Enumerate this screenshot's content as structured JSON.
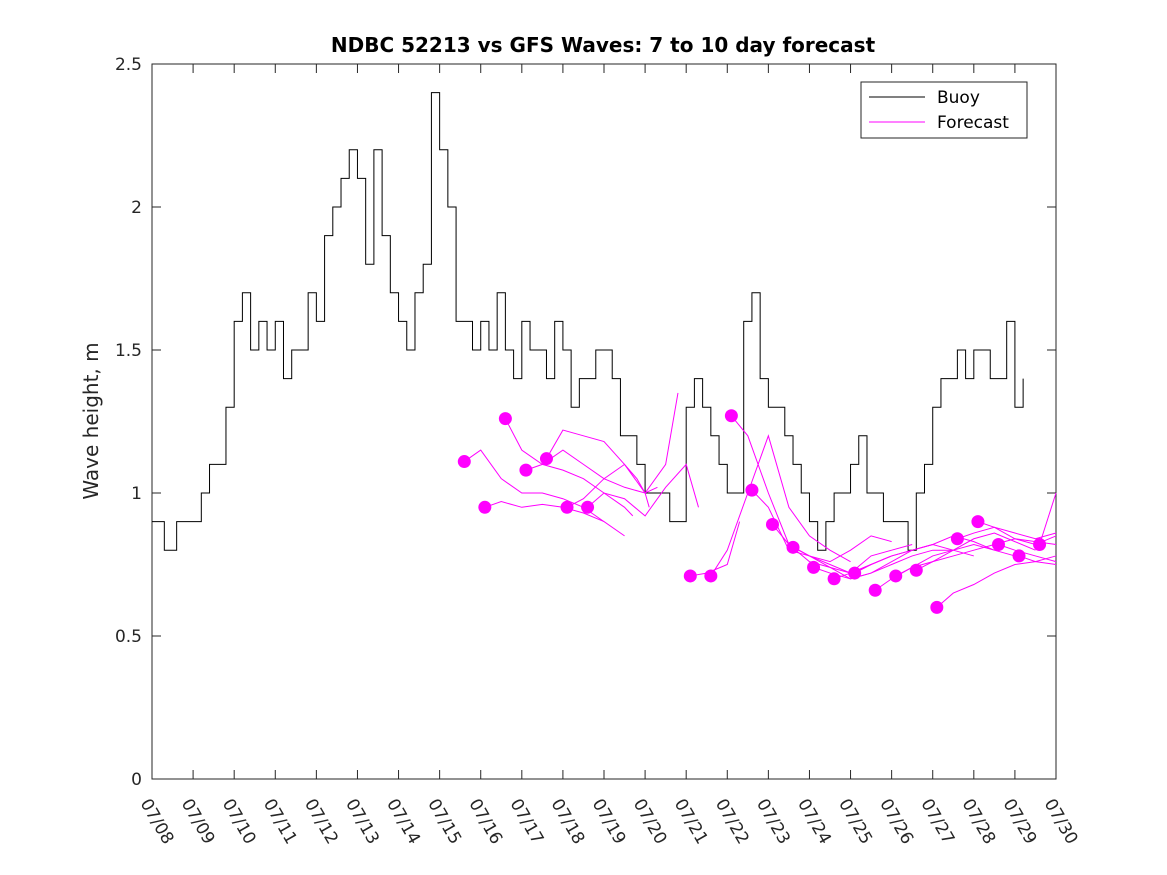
{
  "chart_data": {
    "type": "line",
    "title": "NDBC 52213 vs GFS Waves: 7 to 10 day forecast",
    "xlabel": "",
    "ylabel": "Wave height, m",
    "xlim": [
      0,
      22
    ],
    "ylim": [
      0,
      2.5
    ],
    "x_ticks": [
      "07/08",
      "07/09",
      "07/10",
      "07/11",
      "07/12",
      "07/13",
      "07/14",
      "07/15",
      "07/16",
      "07/17",
      "07/18",
      "07/19",
      "07/20",
      "07/21",
      "07/22",
      "07/23",
      "07/24",
      "07/25",
      "07/26",
      "07/27",
      "07/28",
      "07/29",
      "07/30"
    ],
    "y_ticks": [
      "0",
      "0.5",
      "1",
      "1.5",
      "2",
      "2.5"
    ],
    "x_unit_note_hidden": "",
    "grid": false,
    "legend_position": "top-right",
    "colors": {
      "buoy": "#000000",
      "forecast": "#ff00ff"
    },
    "series": [
      {
        "name": "Buoy",
        "x": [
          0,
          0.15,
          0.3,
          0.45,
          0.6,
          0.8,
          1.0,
          1.2,
          1.4,
          1.6,
          1.8,
          2.0,
          2.2,
          2.4,
          2.6,
          2.8,
          3.0,
          3.2,
          3.4,
          3.6,
          3.8,
          4.0,
          4.2,
          4.4,
          4.6,
          4.8,
          5.0,
          5.2,
          5.4,
          5.6,
          5.8,
          6.0,
          6.2,
          6.4,
          6.6,
          6.8,
          7.0,
          7.2,
          7.4,
          7.6,
          7.8,
          8.0,
          8.2,
          8.4,
          8.6,
          8.8,
          9.0,
          9.2,
          9.4,
          9.6,
          9.8,
          10.0,
          10.2,
          10.4,
          10.6,
          10.8,
          11.0,
          11.2,
          11.4,
          11.6,
          11.8,
          12.0,
          12.2,
          12.4,
          12.6,
          12.8,
          13.0,
          13.2,
          13.4,
          13.6,
          13.8,
          14.0,
          14.2,
          14.4,
          14.6,
          14.8,
          15.0,
          15.2,
          15.4,
          15.6,
          15.8,
          16.0,
          16.2,
          16.4,
          16.6,
          16.8,
          17.0,
          17.2,
          17.4,
          17.6,
          17.8,
          18.0,
          18.2,
          18.4,
          18.6,
          18.8,
          19.0,
          19.2,
          19.4,
          19.6,
          19.8,
          20.0,
          20.2,
          20.4,
          20.6,
          20.8,
          21.0,
          21.2
        ],
        "values": [
          0.9,
          0.9,
          0.8,
          0.8,
          0.9,
          0.9,
          0.9,
          1.0,
          1.1,
          1.1,
          1.3,
          1.6,
          1.7,
          1.5,
          1.6,
          1.5,
          1.6,
          1.4,
          1.5,
          1.5,
          1.7,
          1.6,
          1.9,
          2.0,
          2.1,
          2.2,
          2.1,
          1.8,
          2.2,
          1.9,
          1.7,
          1.6,
          1.5,
          1.7,
          1.8,
          2.4,
          2.2,
          2.0,
          1.6,
          1.6,
          1.5,
          1.6,
          1.5,
          1.7,
          1.5,
          1.4,
          1.6,
          1.5,
          1.5,
          1.4,
          1.6,
          1.5,
          1.3,
          1.4,
          1.4,
          1.5,
          1.5,
          1.4,
          1.2,
          1.2,
          1.1,
          1.0,
          1.0,
          1.0,
          0.9,
          0.9,
          1.3,
          1.4,
          1.3,
          1.2,
          1.1,
          1.0,
          1.0,
          1.6,
          1.7,
          1.4,
          1.3,
          1.3,
          1.2,
          1.1,
          1.0,
          0.9,
          0.8,
          0.9,
          1.0,
          1.0,
          1.1,
          1.2,
          1.0,
          1.0,
          0.9,
          0.9,
          0.9,
          0.8,
          1.0,
          1.1,
          1.3,
          1.4,
          1.4,
          1.5,
          1.4,
          1.5,
          1.5,
          1.4,
          1.4,
          1.6,
          1.3,
          1.4
        ]
      },
      {
        "name": "Forecast",
        "runs": [
          {
            "x": [
              7.6,
              8.0,
              8.5,
              9.0,
              9.5,
              10.0,
              10.5,
              11.0
            ],
            "values": [
              1.11,
              1.15,
              1.05,
              1.0,
              1.0,
              0.98,
              0.95,
              0.9
            ]
          },
          {
            "x": [
              8.1,
              8.5,
              9.0,
              9.5,
              10.0,
              10.5,
              11.0,
              11.5
            ],
            "values": [
              0.95,
              0.97,
              0.95,
              0.96,
              0.95,
              0.93,
              0.9,
              0.85
            ]
          },
          {
            "x": [
              8.6,
              9.0,
              9.5,
              10.0,
              10.5,
              11.0,
              11.5,
              11.7
            ],
            "values": [
              1.26,
              1.15,
              1.1,
              1.08,
              1.05,
              1.0,
              0.95,
              0.92
            ]
          },
          {
            "x": [
              9.1,
              9.5,
              10.0,
              10.5,
              11.0,
              11.5,
              12.0,
              12.1
            ],
            "values": [
              1.08,
              1.1,
              1.15,
              1.1,
              1.05,
              1.02,
              1.0,
              0.95
            ]
          },
          {
            "x": [
              9.6,
              10.0,
              10.5,
              11.0,
              11.5,
              11.8,
              12.0,
              12.3
            ],
            "values": [
              1.12,
              1.22,
              1.2,
              1.18,
              1.1,
              1.05,
              1.0,
              1.02
            ]
          },
          {
            "x": [
              10.1,
              10.5,
              11.0,
              11.5,
              12.0,
              12.5,
              12.8
            ],
            "values": [
              0.95,
              0.98,
              1.05,
              1.1,
              1.0,
              1.1,
              1.35
            ]
          },
          {
            "x": [
              10.6,
              11.0,
              11.5,
              12.0,
              12.5,
              13.0,
              13.3
            ],
            "values": [
              0.95,
              1.0,
              0.98,
              0.92,
              1.02,
              1.1,
              0.95
            ]
          },
          {
            "x": [
              13.1,
              13.5,
              14.0,
              14.3
            ],
            "values": [
              0.71,
              0.72,
              0.75,
              0.9
            ]
          },
          {
            "x": [
              13.6,
              14.0,
              14.5,
              15.0,
              15.5,
              16.0,
              16.5,
              17.0
            ],
            "values": [
              0.71,
              0.8,
              1.0,
              1.2,
              0.95,
              0.85,
              0.8,
              0.76
            ]
          },
          {
            "x": [
              14.1,
              14.5,
              15.0,
              15.5,
              16.0,
              16.5,
              17.0,
              17.5
            ],
            "values": [
              1.27,
              1.2,
              1.0,
              0.82,
              0.78,
              0.75,
              0.72,
              0.75
            ]
          },
          {
            "x": [
              14.6,
              15.0,
              15.5,
              16.0,
              16.5,
              17.0,
              17.5,
              18.0
            ],
            "values": [
              1.01,
              0.95,
              0.8,
              0.78,
              0.76,
              0.8,
              0.85,
              0.83
            ]
          },
          {
            "x": [
              15.1,
              15.5,
              16.0,
              16.5,
              17.0,
              17.5,
              18.0,
              18.5
            ],
            "values": [
              0.89,
              0.82,
              0.76,
              0.74,
              0.72,
              0.78,
              0.8,
              0.82
            ]
          },
          {
            "x": [
              15.6,
              16.0,
              16.5,
              17.0,
              17.5,
              18.0,
              18.5,
              19.0
            ],
            "values": [
              0.81,
              0.78,
              0.74,
              0.7,
              0.72,
              0.76,
              0.8,
              0.82
            ]
          },
          {
            "x": [
              16.1,
              16.5,
              17.0,
              17.5,
              18.0,
              18.5,
              19.0,
              19.5
            ],
            "values": [
              0.74,
              0.72,
              0.7,
              0.72,
              0.75,
              0.78,
              0.8,
              0.8
            ]
          },
          {
            "x": [
              16.6,
              17.0,
              17.5,
              18.0,
              18.5,
              19.0,
              19.5,
              20.0
            ],
            "values": [
              0.7,
              0.72,
              0.75,
              0.78,
              0.8,
              0.82,
              0.8,
              0.78
            ]
          },
          {
            "x": [
              17.1,
              17.5,
              18.0,
              18.5,
              19.0,
              19.5,
              20.0,
              20.5
            ],
            "values": [
              0.72,
              0.75,
              0.78,
              0.8,
              0.82,
              0.85,
              0.83,
              0.8
            ]
          },
          {
            "x": [
              17.6,
              18.0,
              18.5,
              19.0,
              19.5,
              20.0,
              20.5,
              21.0
            ],
            "values": [
              0.66,
              0.7,
              0.74,
              0.78,
              0.8,
              0.82,
              0.8,
              0.78
            ]
          },
          {
            "x": [
              18.1,
              18.5,
              19.0,
              19.5,
              20.0,
              20.5,
              21.0,
              21.5
            ],
            "values": [
              0.71,
              0.74,
              0.76,
              0.8,
              0.84,
              0.86,
              0.83,
              0.8
            ]
          },
          {
            "x": [
              18.6,
              19.0,
              19.5,
              20.0,
              20.5,
              21.0,
              21.5,
              22.0
            ],
            "values": [
              0.73,
              0.76,
              0.78,
              0.8,
              0.82,
              0.84,
              0.83,
              0.82
            ]
          },
          {
            "x": [
              19.1,
              19.5,
              20.0,
              20.5,
              21.0,
              21.5,
              22.0
            ],
            "values": [
              0.6,
              0.65,
              0.68,
              0.72,
              0.75,
              0.76,
              0.78
            ]
          },
          {
            "x": [
              19.6,
              20.0,
              20.5,
              21.0,
              21.5,
              22.0
            ],
            "values": [
              0.84,
              0.86,
              0.88,
              0.86,
              0.84,
              0.86
            ]
          },
          {
            "x": [
              20.1,
              20.5,
              21.0,
              21.5,
              22.0
            ],
            "values": [
              0.9,
              0.88,
              0.84,
              0.82,
              0.85
            ]
          },
          {
            "x": [
              20.6,
              21.0,
              21.5,
              22.0
            ],
            "values": [
              0.82,
              0.8,
              0.78,
              0.76
            ]
          },
          {
            "x": [
              21.1,
              21.5,
              22.0
            ],
            "values": [
              0.78,
              0.76,
              0.75
            ]
          },
          {
            "x": [
              21.6,
              22.0
            ],
            "values": [
              0.82,
              1.0
            ]
          }
        ]
      }
    ]
  }
}
